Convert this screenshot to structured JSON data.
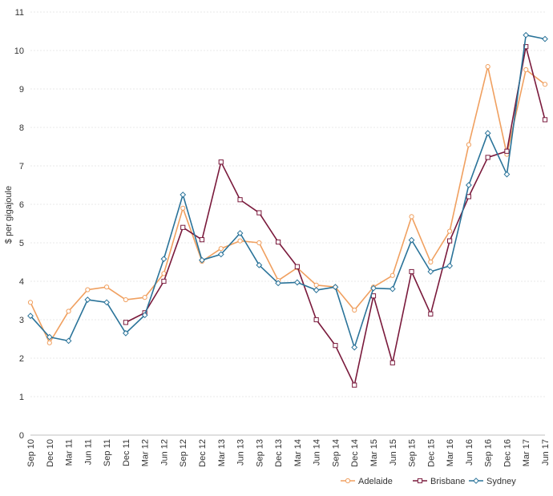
{
  "chart_data": {
    "type": "line",
    "ylabel": "$ per gigajoule",
    "ylim": [
      0,
      11
    ],
    "yticks": [
      0,
      1,
      2,
      3,
      4,
      5,
      6,
      7,
      8,
      9,
      10,
      11
    ],
    "grid": "horizontal",
    "legend_position": "bottom-right",
    "categories": [
      "Sep 10",
      "Dec 10",
      "Mar 11",
      "Jun 11",
      "Sep 11",
      "Dec 11",
      "Mar 12",
      "Jun 12",
      "Sep 12",
      "Dec 12",
      "Mar 13",
      "Jun 13",
      "Sep 13",
      "Dec 13",
      "Mar 14",
      "Jun 14",
      "Sep 14",
      "Dec 14",
      "Mar 15",
      "Jun 15",
      "Sep 15",
      "Dec 15",
      "Mar 16",
      "Jun 16",
      "Sep 16",
      "Dec 16",
      "Mar 17",
      "Jun 17"
    ],
    "series": [
      {
        "name": "Adelaide",
        "color": "#f0a060",
        "marker": "circle",
        "values": [
          3.45,
          2.4,
          3.22,
          3.78,
          3.85,
          3.52,
          3.58,
          4.2,
          5.9,
          4.52,
          4.85,
          5.05,
          5.0,
          4.02,
          4.35,
          3.9,
          3.85,
          3.25,
          3.85,
          4.15,
          5.68,
          4.5,
          5.3,
          7.55,
          9.58,
          7.3,
          9.5,
          9.12
        ]
      },
      {
        "name": "Brisbane",
        "color": "#7a1a3c",
        "marker": "square",
        "values": [
          null,
          null,
          null,
          null,
          null,
          2.93,
          3.18,
          4.0,
          5.4,
          5.08,
          7.1,
          6.12,
          5.78,
          5.02,
          4.38,
          3.0,
          2.33,
          1.3,
          3.62,
          1.88,
          4.25,
          3.15,
          5.05,
          6.2,
          7.22,
          7.38,
          10.1,
          8.2
        ]
      },
      {
        "name": "Sydney",
        "color": "#2a7399",
        "marker": "diamond",
        "values": [
          3.1,
          2.55,
          2.45,
          3.52,
          3.45,
          2.65,
          3.12,
          4.58,
          6.25,
          4.55,
          4.7,
          5.25,
          4.42,
          3.95,
          3.97,
          3.77,
          3.85,
          2.28,
          3.82,
          3.8,
          5.07,
          4.25,
          4.4,
          6.5,
          7.85,
          6.78,
          10.4,
          10.3
        ]
      }
    ]
  }
}
